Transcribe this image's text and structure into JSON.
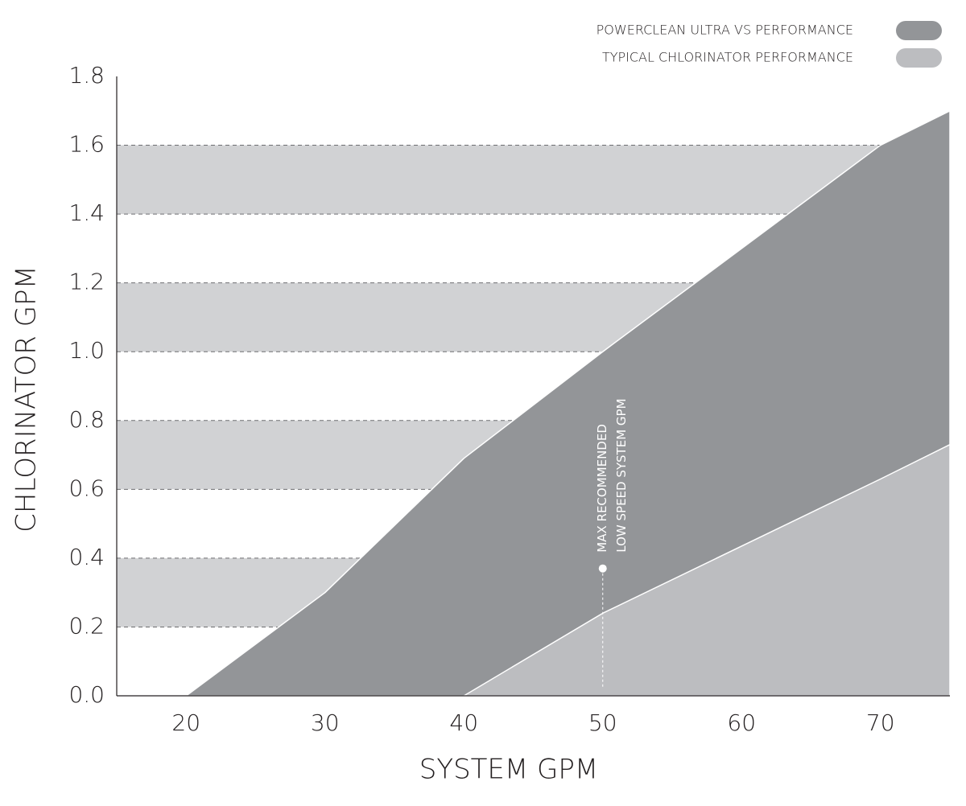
{
  "chart_data": {
    "type": "area",
    "xlabel": "SYSTEM GPM",
    "ylabel": "CHLORINATOR GPM",
    "xlim": [
      15,
      75
    ],
    "ylim": [
      0,
      1.8
    ],
    "xticks": [
      20,
      30,
      40,
      50,
      60,
      70
    ],
    "yticks": [
      {
        "value": 0,
        "label": "0.0"
      },
      0.2,
      0.4,
      0.6,
      0.8,
      {
        "value": 1,
        "label": "1.0"
      },
      1.2,
      1.4,
      1.6,
      1.8
    ],
    "grid": true,
    "grid_bands_color": "#d1d2d4",
    "legend": "top-right",
    "series": [
      {
        "name": "POWERCLEAN ULTRA VS PERFORMANCE",
        "color": "#939598",
        "x": [
          20,
          30,
          40,
          50,
          70,
          75
        ],
        "values": [
          0,
          0.3,
          0.69,
          1.0,
          1.6,
          1.7
        ]
      },
      {
        "name": "TYPICAL CHLORINATOR PERFORMANCE",
        "color": "#bcbdc0",
        "x": [
          40,
          50,
          70,
          75
        ],
        "values": [
          0,
          0.24,
          0.63,
          0.73
        ]
      }
    ],
    "annotation": {
      "lines": [
        "MAX RECOMMENDED",
        "LOW SPEED SYSTEM GPM"
      ],
      "x": 50,
      "y": 0.37
    }
  }
}
